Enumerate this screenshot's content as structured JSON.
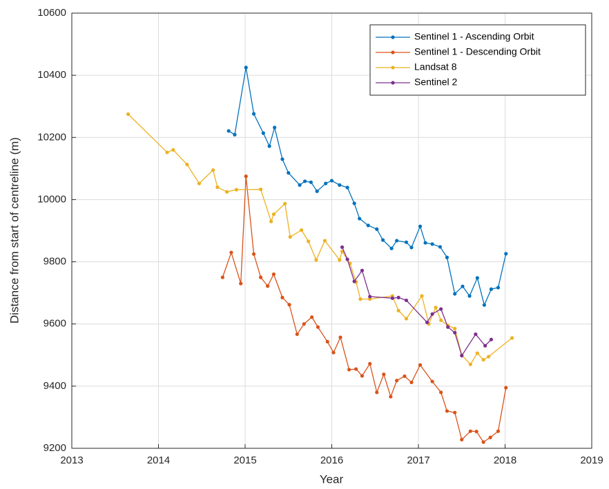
{
  "chart_data": {
    "type": "line",
    "xlabel": "Year",
    "ylabel": "Distance from start of centreline (m)",
    "xlim": [
      2013,
      2019
    ],
    "xticks": [
      2013,
      2014,
      2015,
      2016,
      2017,
      2018,
      2019
    ],
    "ylim": [
      9200,
      10600
    ],
    "yticks": [
      9200,
      9400,
      9600,
      9800,
      10000,
      10200,
      10400,
      10600
    ],
    "grid": true,
    "legend": "northeast",
    "series": [
      {
        "name": "Sentinel 1 - Ascending Orbit",
        "color": "#0072BD",
        "x": [
          2014.81,
          2014.88,
          2015.01,
          2015.1,
          2015.21,
          2015.28,
          2015.34,
          2015.43,
          2015.5,
          2015.63,
          2015.69,
          2015.76,
          2015.83,
          2015.93,
          2016.0,
          2016.09,
          2016.18,
          2016.26,
          2016.32,
          2016.42,
          2016.52,
          2016.59,
          2016.69,
          2016.75,
          2016.86,
          2016.92,
          2017.02,
          2017.08,
          2017.16,
          2017.25,
          2017.33,
          2017.42,
          2017.51,
          2017.59,
          2017.68,
          2017.76,
          2017.84,
          2017.92,
          2018.01
        ],
        "values": [
          10221,
          10209,
          10425,
          10276,
          10214,
          10172,
          10232,
          10130,
          10086,
          10047,
          10059,
          10056,
          10027,
          10052,
          10061,
          10047,
          10039,
          9988,
          9939,
          9917,
          9905,
          9870,
          9843,
          9868,
          9863,
          9846,
          9914,
          9861,
          9857,
          9848,
          9814,
          9697,
          9721,
          9690,
          9748,
          9661,
          9712,
          9717,
          9826
        ]
      },
      {
        "name": "Sentinel 1 - Descending Orbit",
        "color": "#D95319",
        "x": [
          2014.74,
          2014.84,
          2014.95,
          2015.01,
          2015.1,
          2015.18,
          2015.26,
          2015.33,
          2015.43,
          2015.51,
          2015.6,
          2015.68,
          2015.77,
          2015.84,
          2015.95,
          2016.02,
          2016.1,
          2016.2,
          2016.28,
          2016.35,
          2016.44,
          2016.52,
          2016.6,
          2016.68,
          2016.75,
          2016.84,
          2016.92,
          2017.02,
          2017.16,
          2017.26,
          2017.33,
          2017.42,
          2017.5,
          2017.6,
          2017.67,
          2017.75,
          2017.83,
          2017.92,
          2018.01
        ],
        "values": [
          9750,
          9830,
          9730,
          10075,
          9825,
          9750,
          9722,
          9760,
          9685,
          9662,
          9567,
          9600,
          9622,
          9590,
          9543,
          9508,
          9557,
          9453,
          9455,
          9433,
          9472,
          9380,
          9438,
          9366,
          9418,
          9432,
          9412,
          9468,
          9415,
          9380,
          9320,
          9315,
          9228,
          9255,
          9254,
          9220,
          9235,
          9255,
          9395
        ]
      },
      {
        "name": "Landsat 8",
        "color": "#EDB120",
        "x": [
          2013.65,
          2014.1,
          2014.17,
          2014.33,
          2014.47,
          2014.63,
          2014.68,
          2014.79,
          2014.9,
          2015.18,
          2015.3,
          2015.33,
          2015.46,
          2015.52,
          2015.65,
          2015.73,
          2015.82,
          2015.92,
          2016.09,
          2016.12,
          2016.21,
          2016.28,
          2016.33,
          2016.44,
          2016.7,
          2016.77,
          2016.86,
          2017.04,
          2017.12,
          2017.2,
          2017.26,
          2017.34,
          2017.42,
          2017.5,
          2017.6,
          2017.68,
          2017.75,
          2017.81,
          2018.08
        ],
        "values": [
          10275,
          10152,
          10160,
          10113,
          10052,
          10095,
          10040,
          10025,
          10032,
          10033,
          9930,
          9953,
          9987,
          9880,
          9902,
          9866,
          9806,
          9868,
          9806,
          9833,
          9795,
          9735,
          9680,
          9680,
          9690,
          9643,
          9617,
          9690,
          9600,
          9653,
          9612,
          9595,
          9585,
          9500,
          9470,
          9506,
          9485,
          9495,
          9555
        ]
      },
      {
        "name": "Sentinel 2",
        "color": "#7E2F8E",
        "x": [
          2016.12,
          2016.18,
          2016.26,
          2016.35,
          2016.44,
          2016.7,
          2016.77,
          2016.86,
          2017.1,
          2017.16,
          2017.26,
          2017.34,
          2017.42,
          2017.5,
          2017.66,
          2017.77,
          2017.84
        ],
        "values": [
          9847,
          9808,
          9737,
          9772,
          9688,
          9683,
          9685,
          9676,
          9605,
          9632,
          9648,
          9590,
          9572,
          9498,
          9567,
          9530,
          9550
        ]
      }
    ]
  }
}
